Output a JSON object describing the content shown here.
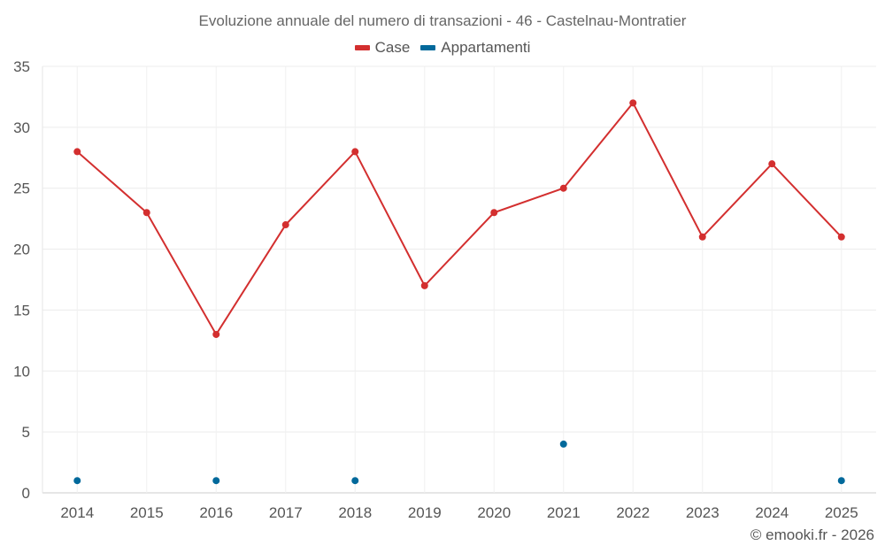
{
  "chart_data": {
    "type": "line",
    "title": "Evoluzione annuale del numero di transazioni - 46 - Castelnau-Montratier",
    "categories": [
      "2014",
      "2015",
      "2016",
      "2017",
      "2018",
      "2019",
      "2020",
      "2021",
      "2022",
      "2023",
      "2024",
      "2025"
    ],
    "series": [
      {
        "name": "Case",
        "color": "#d32f2f",
        "values": [
          28,
          23,
          13,
          22,
          28,
          17,
          23,
          25,
          32,
          21,
          27,
          21
        ]
      },
      {
        "name": "Appartamenti",
        "color": "#01699b",
        "values": [
          1,
          null,
          1,
          null,
          1,
          null,
          null,
          4,
          null,
          null,
          null,
          1
        ]
      }
    ],
    "ylim": [
      0,
      35
    ],
    "yticks": [
      "0",
      "5",
      "10",
      "15",
      "20",
      "25",
      "30",
      "35"
    ],
    "xlabel": "",
    "ylabel": "",
    "legend_position": "top-center",
    "grid": true
  },
  "legend": {
    "case_label": "Case",
    "appartamenti_label": "Appartamenti",
    "case_color": "#d32f2f",
    "appartamenti_color": "#01699b"
  },
  "credit": "© emooki.fr - 2026"
}
